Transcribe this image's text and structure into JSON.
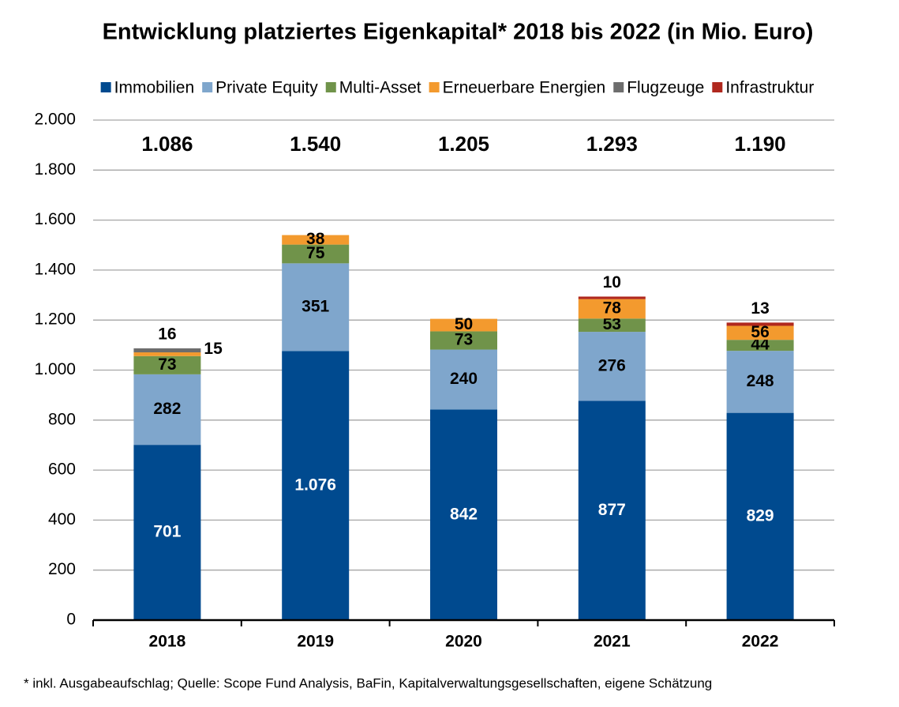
{
  "chart_data": {
    "type": "stacked_bar",
    "title": "Entwicklung platziertes Eigenkapital* 2018 bis 2022 (in Mio. Euro)",
    "footnote": "* inkl. Ausgabeaufschlag; Quelle: Scope Fund Analysis, BaFin, Kapitalverwaltungsgesellschaften, eigene Schätzung",
    "categories": [
      "2018",
      "2019",
      "2020",
      "2021",
      "2022"
    ],
    "series": [
      {
        "name": "Immobilien",
        "color": "#004a8f",
        "values": [
          701,
          1076,
          842,
          877,
          829
        ],
        "value_labels": [
          "701",
          "1.076",
          "842",
          "877",
          "829"
        ]
      },
      {
        "name": "Private Equity",
        "color": "#7fa6cc",
        "values": [
          282,
          351,
          240,
          276,
          248
        ]
      },
      {
        "name": "Multi-Asset",
        "color": "#70934a",
        "values": [
          73,
          75,
          73,
          53,
          44
        ]
      },
      {
        "name": "Erneuerbare Energien",
        "color": "#f39a2e",
        "values": [
          15,
          38,
          50,
          78,
          56
        ]
      },
      {
        "name": "Flugzeuge",
        "color": "#6d6d6d",
        "values": [
          16,
          null,
          null,
          null,
          null
        ]
      },
      {
        "name": "Infrastruktur",
        "color": "#b0281e",
        "values": [
          null,
          null,
          null,
          10,
          13
        ]
      }
    ],
    "totals": {
      "values": [
        1086,
        1540,
        1205,
        1293,
        1190
      ],
      "value_labels": [
        "1.086",
        "1.540",
        "1.205",
        "1.293",
        "1.190"
      ]
    },
    "ylim": [
      0,
      2000
    ],
    "yticks": [
      0,
      200,
      400,
      600,
      800,
      {
        "value": 1000,
        "label": "1.000"
      },
      {
        "value": 1200,
        "label": "1.200"
      },
      {
        "value": 1400,
        "label": "1.400"
      },
      {
        "value": 1600,
        "label": "1.600"
      },
      {
        "value": 1800,
        "label": "1.800"
      },
      {
        "value": 2000,
        "label": "2.000"
      }
    ],
    "grid": true,
    "legend": "top"
  }
}
